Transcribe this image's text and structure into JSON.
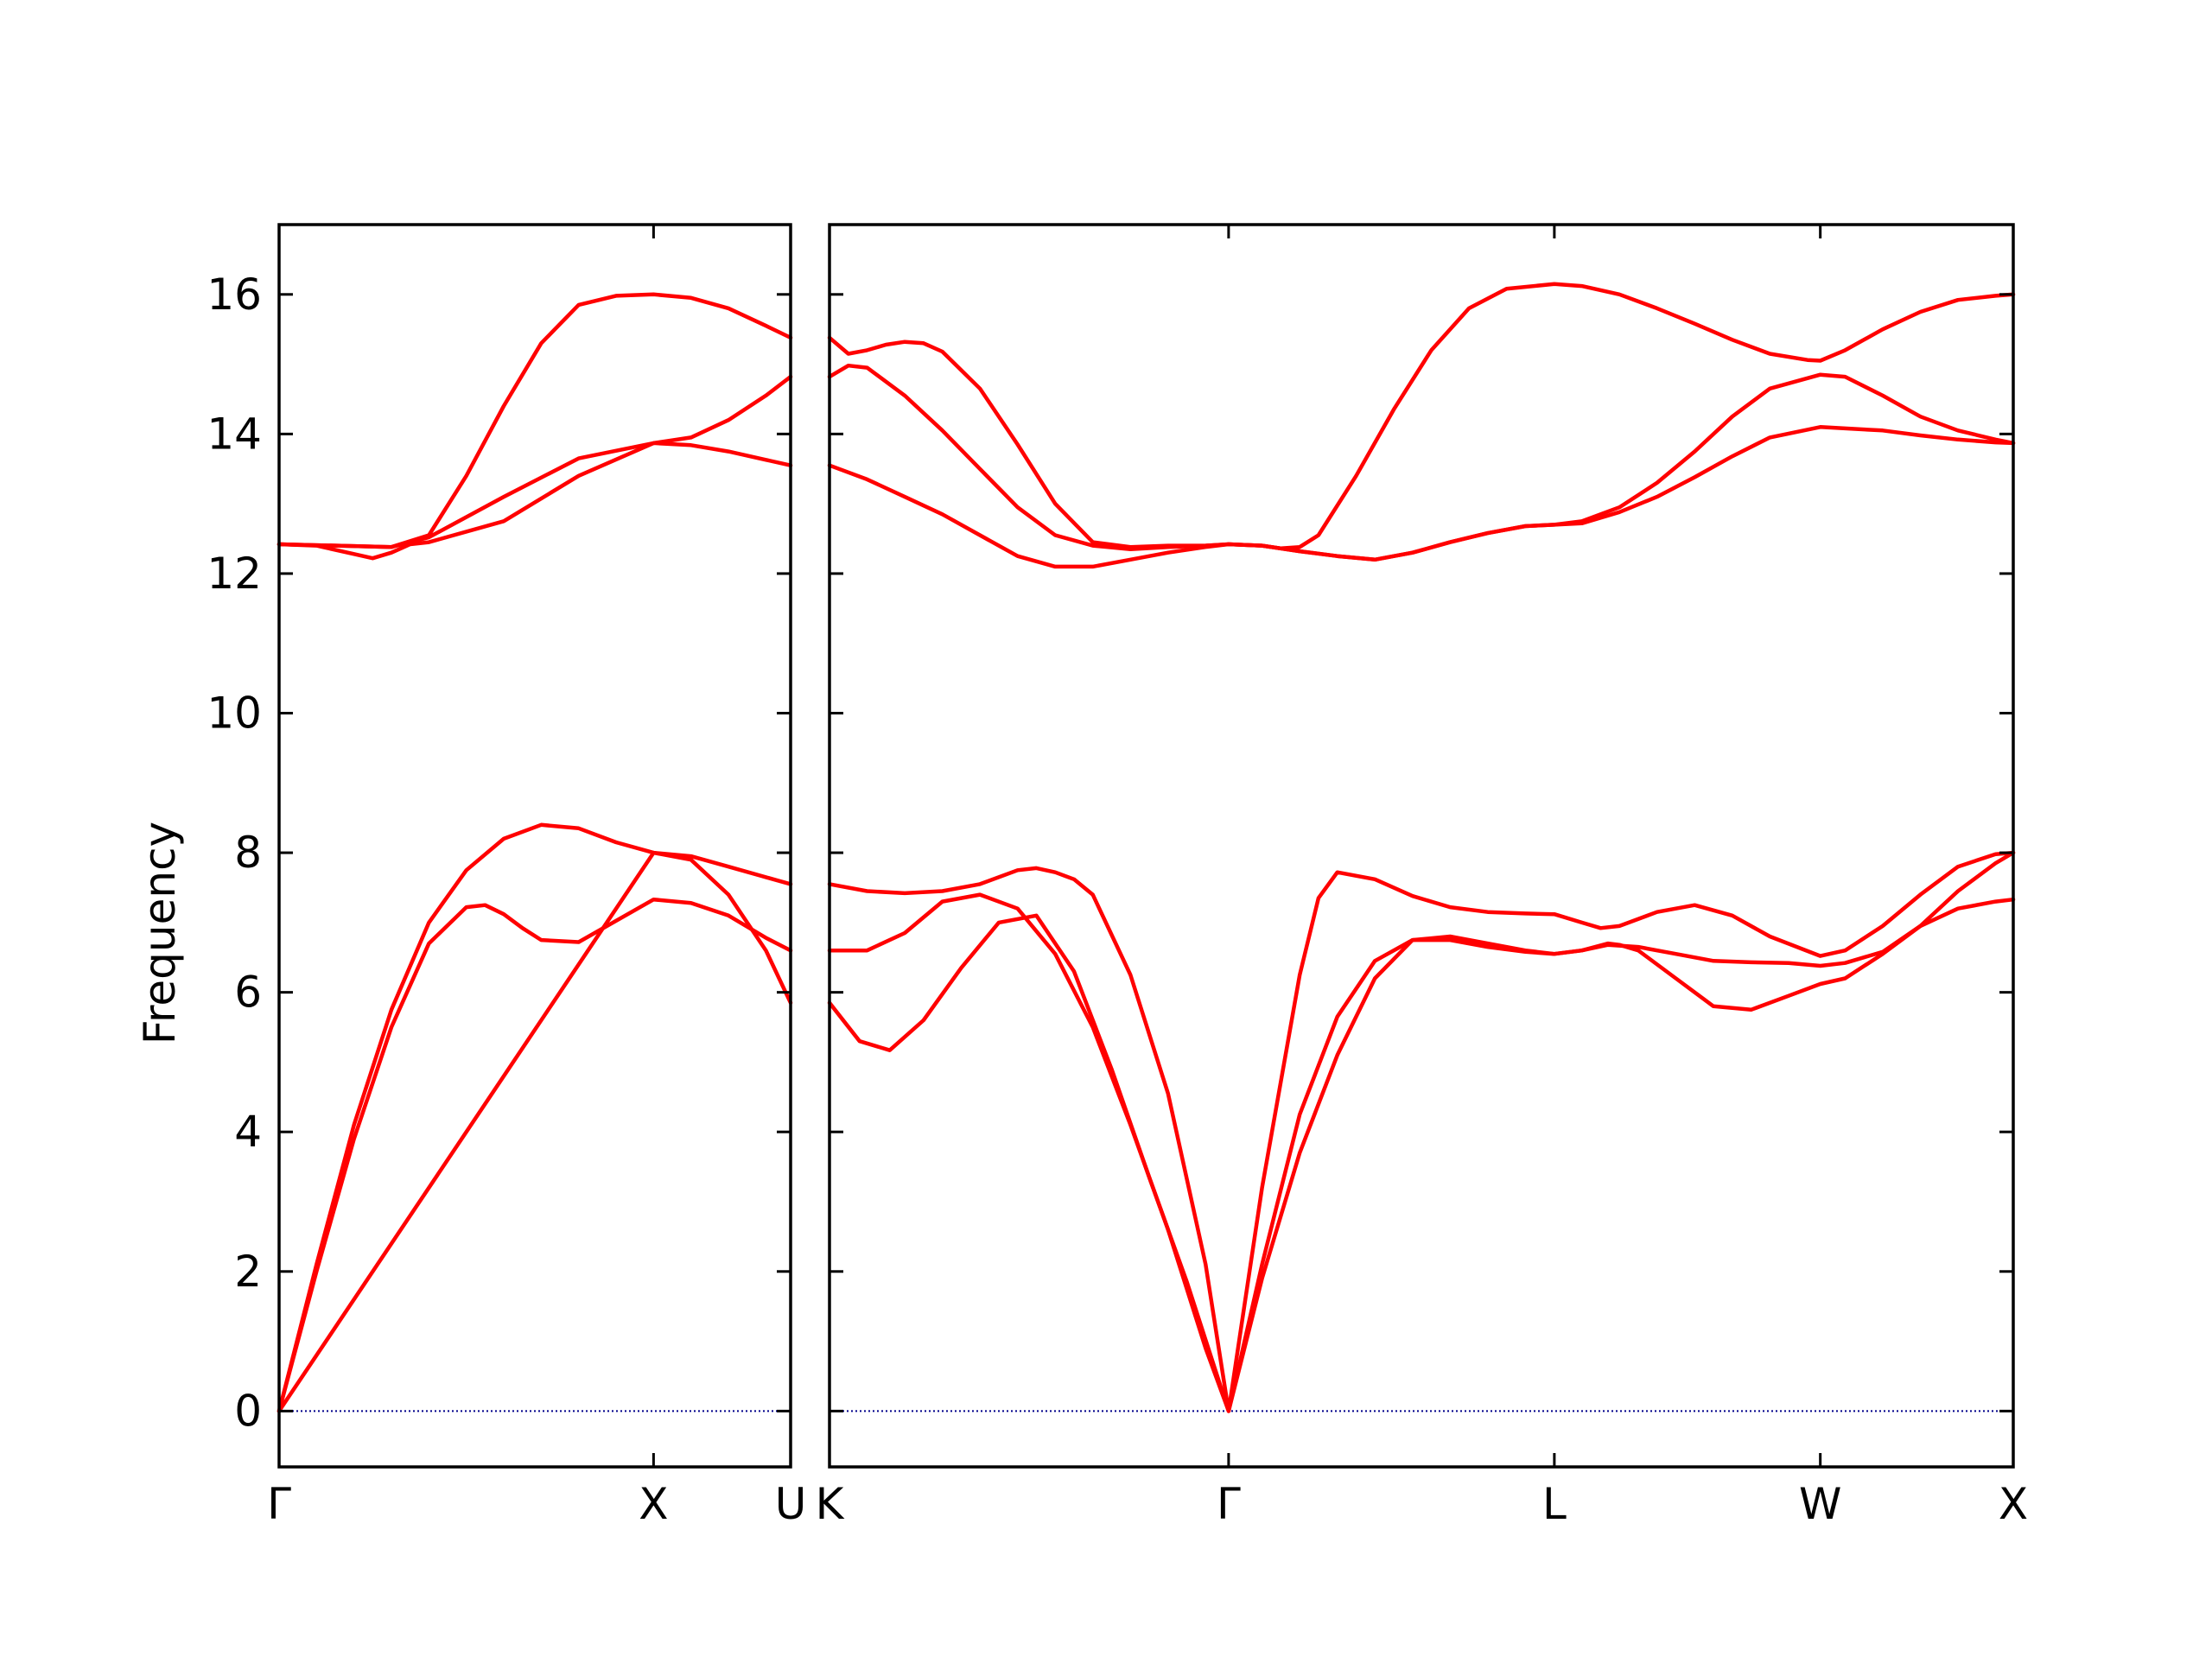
{
  "chart_data": {
    "type": "line",
    "title": "",
    "ylabel": "Frequency",
    "xlabel": "",
    "ylim": [
      -0.8,
      17
    ],
    "yticks": [
      0,
      2,
      4,
      6,
      8,
      10,
      12,
      14,
      16
    ],
    "line_color": "#ff0000",
    "zero_line_color": "#00008b",
    "grid": false,
    "legend": "none",
    "panels": [
      {
        "xlim": [
          0,
          1.366
        ],
        "ticks": [
          {
            "x": 0,
            "label": "Γ"
          },
          {
            "x": 1.0,
            "label": "X"
          },
          {
            "x": 1.366,
            "label": "U"
          }
        ],
        "series": [
          {
            "x": [
              0,
              0.1,
              0.2,
              0.3,
              0.4,
              0.5,
              0.55,
              0.6,
              0.65,
              0.7,
              0.8,
              1.0,
              1.1,
              1.2,
              1.3,
              1.366
            ],
            "y": [
              0,
              2.0,
              3.9,
              5.5,
              6.7,
              7.22,
              7.25,
              7.12,
              6.92,
              6.75,
              6.72,
              7.33,
              7.28,
              7.1,
              6.78,
              6.6
            ]
          },
          {
            "x": [
              0,
              0.1,
              0.2,
              0.3,
              0.4,
              0.5,
              0.6,
              0.7,
              0.8,
              0.9,
              1.0,
              1.1,
              1.2,
              1.3,
              1.366
            ],
            "y": [
              0,
              2.1,
              4.1,
              5.75,
              7.0,
              7.75,
              8.2,
              8.4,
              8.35,
              8.15,
              8.0,
              7.9,
              7.4,
              6.6,
              5.85
            ]
          },
          {
            "x": [
              0,
              1.0,
              1.1,
              1.2,
              1.3,
              1.366
            ],
            "y": [
              0,
              8.0,
              7.95,
              7.8,
              7.65,
              7.55
            ]
          },
          {
            "x": [
              0,
              0.1,
              0.2,
              0.25,
              0.3,
              0.35,
              0.4,
              0.6,
              0.8,
              1.0,
              1.1,
              1.2,
              1.3,
              1.366
            ],
            "y": [
              12.42,
              12.4,
              12.28,
              12.22,
              12.3,
              12.42,
              12.45,
              12.75,
              13.4,
              13.87,
              13.84,
              13.75,
              13.63,
              13.55
            ]
          },
          {
            "x": [
              0,
              0.3,
              0.4,
              0.5,
              0.6,
              0.7,
              0.8,
              0.9,
              1.0,
              1.1,
              1.2,
              1.3,
              1.366
            ],
            "y": [
              12.42,
              12.38,
              12.55,
              13.4,
              14.4,
              15.3,
              15.85,
              15.98,
              16.0,
              15.95,
              15.8,
              15.55,
              15.38
            ]
          },
          {
            "x": [
              0,
              0.3,
              0.4,
              0.6,
              0.8,
              1.0,
              1.1,
              1.2,
              1.3,
              1.366
            ],
            "y": [
              12.42,
              12.38,
              12.52,
              13.1,
              13.65,
              13.87,
              13.95,
              14.2,
              14.55,
              14.82
            ]
          }
        ]
      },
      {
        "xlim": [
          0,
          3.147
        ],
        "ticks": [
          {
            "x": 0,
            "label": "K"
          },
          {
            "x": 1.061,
            "label": "Γ"
          },
          {
            "x": 1.927,
            "label": "L"
          },
          {
            "x": 2.634,
            "label": "W"
          },
          {
            "x": 3.147,
            "label": "X"
          }
        ],
        "series": [
          {
            "x": [
              0,
              0.08,
              0.16,
              0.25,
              0.35,
              0.45,
              0.55,
              0.65,
              0.75,
              0.85,
              0.95,
              1.061,
              1.15,
              1.25,
              1.35,
              1.45,
              1.55,
              1.65,
              1.75,
              1.85,
              1.927,
              2.0,
              2.07,
              2.1,
              2.15,
              2.25,
              2.35,
              2.45,
              2.55,
              2.634,
              2.7,
              2.8,
              2.9,
              3.0,
              3.1,
              3.147
            ],
            "y": [
              5.85,
              5.3,
              5.17,
              5.6,
              6.35,
              7.0,
              7.1,
              6.3,
              4.9,
              3.35,
              1.85,
              0,
              1.9,
              3.7,
              5.1,
              6.2,
              6.75,
              6.8,
              6.7,
              6.6,
              6.55,
              6.6,
              6.7,
              6.68,
              6.6,
              6.2,
              5.8,
              5.75,
              5.95,
              6.12,
              6.2,
              6.55,
              6.95,
              7.2,
              7.3,
              7.33
            ]
          },
          {
            "x": [
              0,
              0.1,
              0.2,
              0.3,
              0.4,
              0.5,
              0.6,
              0.7,
              0.8,
              0.9,
              1.0,
              1.061,
              1.15,
              1.25,
              1.35,
              1.45,
              1.55,
              1.65,
              1.75,
              1.85,
              1.927,
              2.0,
              2.07,
              2.15,
              2.25,
              2.35,
              2.45,
              2.55,
              2.634,
              2.7,
              2.8,
              2.9,
              3.0,
              3.1,
              3.147
            ],
            "y": [
              6.6,
              6.6,
              6.85,
              7.3,
              7.4,
              7.2,
              6.55,
              5.5,
              4.1,
              2.6,
              0.9,
              0,
              2.1,
              4.25,
              5.65,
              6.45,
              6.75,
              6.75,
              6.65,
              6.58,
              6.55,
              6.6,
              6.68,
              6.65,
              6.55,
              6.45,
              6.43,
              6.42,
              6.38,
              6.42,
              6.58,
              6.95,
              7.45,
              7.85,
              8.0
            ]
          },
          {
            "x": [
              0,
              0.1,
              0.2,
              0.3,
              0.4,
              0.5,
              0.55,
              0.6,
              0.65,
              0.7,
              0.8,
              0.9,
              1.0,
              1.061,
              1.15,
              1.25,
              1.3,
              1.35,
              1.45,
              1.55,
              1.65,
              1.75,
              1.85,
              1.927,
              2.0,
              2.05,
              2.1,
              2.2,
              2.3,
              2.4,
              2.5,
              2.634,
              2.7,
              2.8,
              2.9,
              3.0,
              3.1,
              3.147
            ],
            "y": [
              7.55,
              7.45,
              7.42,
              7.45,
              7.55,
              7.75,
              7.78,
              7.72,
              7.62,
              7.4,
              6.25,
              4.55,
              2.1,
              0,
              3.2,
              6.25,
              7.35,
              7.72,
              7.62,
              7.38,
              7.22,
              7.15,
              7.13,
              7.12,
              7.0,
              6.92,
              6.95,
              7.15,
              7.25,
              7.1,
              6.8,
              6.52,
              6.6,
              6.95,
              7.4,
              7.8,
              7.98,
              8.0
            ]
          },
          {
            "x": [
              0,
              0.1,
              0.2,
              0.3,
              0.4,
              0.5,
              0.6,
              0.7,
              0.8,
              0.9,
              1.0,
              1.061,
              1.15,
              1.25,
              1.35,
              1.45,
              1.55,
              1.65,
              1.75,
              1.85,
              1.927,
              2.0,
              2.1,
              2.2,
              2.3,
              2.4,
              2.5,
              2.634,
              2.7,
              2.8,
              2.9,
              3.0,
              3.1,
              3.147
            ],
            "y": [
              13.55,
              13.35,
              13.1,
              12.85,
              12.55,
              12.25,
              12.1,
              12.1,
              12.2,
              12.3,
              12.38,
              12.42,
              12.4,
              12.32,
              12.25,
              12.2,
              12.3,
              12.45,
              12.58,
              12.68,
              12.7,
              12.72,
              12.88,
              13.1,
              13.38,
              13.68,
              13.95,
              14.1,
              14.08,
              14.05,
              13.98,
              13.92,
              13.88,
              13.87
            ]
          },
          {
            "x": [
              0,
              0.05,
              0.1,
              0.2,
              0.3,
              0.4,
              0.5,
              0.6,
              0.7,
              0.8,
              0.9,
              1.0,
              1.061,
              1.15,
              1.25,
              1.35,
              1.45,
              1.55,
              1.65,
              1.75,
              1.85,
              1.927,
              2.0,
              2.1,
              2.2,
              2.3,
              2.4,
              2.5,
              2.634,
              2.7,
              2.8,
              2.9,
              3.0,
              3.1,
              3.147
            ],
            "y": [
              14.82,
              14.98,
              14.95,
              14.55,
              14.05,
              13.5,
              12.95,
              12.55,
              12.4,
              12.35,
              12.38,
              12.4,
              12.42,
              12.4,
              12.32,
              12.25,
              12.2,
              12.3,
              12.45,
              12.58,
              12.68,
              12.7,
              12.75,
              12.95,
              13.3,
              13.75,
              14.25,
              14.65,
              14.85,
              14.82,
              14.55,
              14.25,
              14.05,
              13.92,
              13.87
            ]
          },
          {
            "x": [
              0,
              0.05,
              0.1,
              0.15,
              0.2,
              0.25,
              0.3,
              0.4,
              0.5,
              0.6,
              0.7,
              0.8,
              0.9,
              1.0,
              1.061,
              1.15,
              1.2,
              1.25,
              1.3,
              1.4,
              1.5,
              1.6,
              1.7,
              1.8,
              1.927,
              2.0,
              2.1,
              2.2,
              2.3,
              2.4,
              2.5,
              2.6,
              2.634,
              2.7,
              2.8,
              2.9,
              3.0,
              3.1,
              3.147
            ],
            "y": [
              15.38,
              15.15,
              15.2,
              15.28,
              15.32,
              15.3,
              15.18,
              14.65,
              13.85,
              13.0,
              12.45,
              12.38,
              12.4,
              12.4,
              12.42,
              12.4,
              12.36,
              12.38,
              12.55,
              13.4,
              14.35,
              15.2,
              15.8,
              16.08,
              16.15,
              16.12,
              16.0,
              15.8,
              15.58,
              15.35,
              15.15,
              15.06,
              15.05,
              15.2,
              15.5,
              15.75,
              15.92,
              15.98,
              16.0
            ]
          }
        ]
      }
    ]
  }
}
